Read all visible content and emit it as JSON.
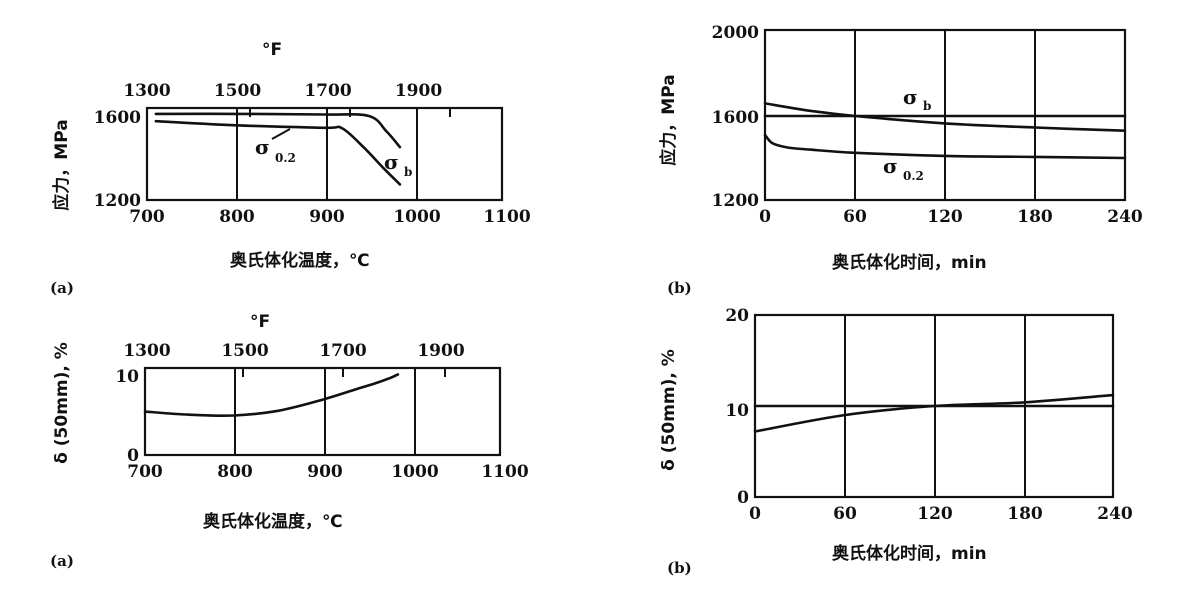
{
  "chart_data": [
    {
      "panel": "(a)",
      "type": "line",
      "xlabel": "奥氏体化温度，℃",
      "ylabel": "应力，MPa",
      "top_axis_label": "°F",
      "x_ticks": [
        "700",
        "800",
        "900",
        "1000",
        "1100"
      ],
      "top_ticks": [
        "1300",
        "1500",
        "1700",
        "1900"
      ],
      "y_ticks": [
        "1600",
        "1200"
      ],
      "xlim": [
        700,
        1100
      ],
      "ylim": [
        1200,
        1650
      ],
      "grid": "vertical",
      "series": [
        {
          "name": "σb",
          "label_main": "σ",
          "label_sub": "b",
          "x": [
            710,
            800,
            900,
            950,
            970,
            985
          ],
          "y": [
            1615,
            1615,
            1612,
            1605,
            1530,
            1455
          ]
        },
        {
          "name": "σ0.2",
          "label_main": "σ",
          "label_sub": "0.2",
          "x": [
            710,
            800,
            900,
            920,
            945,
            965,
            985
          ],
          "y": [
            1580,
            1560,
            1548,
            1545,
            1450,
            1360,
            1275
          ]
        }
      ]
    },
    {
      "panel": "(b)",
      "type": "line",
      "xlabel": "奥氏体化时间，min",
      "ylabel": "应力，MPa",
      "x_ticks": [
        "0",
        "60",
        "120",
        "180",
        "240"
      ],
      "y_ticks": [
        "2000",
        "1600",
        "1200"
      ],
      "xlim": [
        0,
        240
      ],
      "ylim": [
        1200,
        2000
      ],
      "grid": "vertical",
      "series": [
        {
          "name": "σb",
          "label_main": "σ",
          "label_sub": "b",
          "x": [
            0,
            30,
            60,
            120,
            180,
            240
          ],
          "y": [
            1660,
            1625,
            1600,
            1565,
            1545,
            1530
          ]
        },
        {
          "name": "σ0.2",
          "label_main": "σ",
          "label_sub": "0.2",
          "x": [
            0,
            5,
            15,
            30,
            60,
            120,
            180,
            240
          ],
          "y": [
            1510,
            1470,
            1450,
            1440,
            1425,
            1410,
            1405,
            1400
          ]
        },
        {
          "name": "",
          "label_main": "",
          "label_sub": "",
          "x": [
            0,
            240
          ],
          "y": [
            1600,
            1600
          ]
        }
      ]
    },
    {
      "panel": "(a)",
      "type": "line",
      "xlabel": "奥氏体化温度，℃",
      "ylabel": "δ (50mm), %",
      "top_axis_label": "°F",
      "x_ticks": [
        "700",
        "800",
        "900",
        "1000",
        "1100"
      ],
      "top_ticks": [
        "1300",
        "1500",
        "1700",
        "1900"
      ],
      "y_ticks": [
        "10",
        "0"
      ],
      "xlim": [
        700,
        1100
      ],
      "ylim": [
        0,
        10
      ],
      "grid": "vertical",
      "series": [
        {
          "name": "",
          "label_main": "",
          "label_sub": "",
          "x": [
            700,
            750,
            800,
            850,
            900,
            940,
            960,
            975,
            985
          ],
          "y": [
            5.5,
            5.1,
            5.0,
            5.6,
            7.0,
            8.4,
            9.1,
            9.7,
            10.2
          ]
        }
      ]
    },
    {
      "panel": "(b)",
      "type": "line",
      "xlabel": "奥氏体化时间，min",
      "ylabel": "δ (50mm), %",
      "x_ticks": [
        "0",
        "60",
        "120",
        "180",
        "240"
      ],
      "y_ticks": [
        "20",
        "10",
        "0"
      ],
      "xlim": [
        0,
        240
      ],
      "ylim": [
        0,
        20
      ],
      "grid": "vertical",
      "series": [
        {
          "name": "",
          "label_main": "",
          "label_sub": "",
          "x": [
            0,
            60,
            120,
            180,
            240
          ],
          "y": [
            7.2,
            9.0,
            10.0,
            10.4,
            11.2
          ]
        },
        {
          "name": "",
          "label_main": "",
          "label_sub": "",
          "x": [
            0,
            240
          ],
          "y": [
            10,
            10
          ]
        }
      ]
    }
  ]
}
